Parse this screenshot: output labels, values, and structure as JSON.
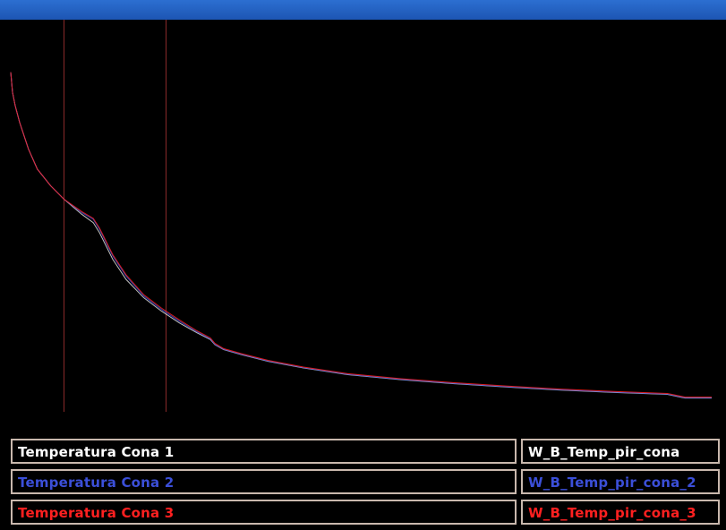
{
  "toolbar": {
    "labels": [
      "",
      "",
      "",
      "",
      "",
      "",
      "",
      "",
      "",
      "",
      ""
    ]
  },
  "legend": [
    {
      "name": "Temperatura Cona 1",
      "variable": "W_B_Temp_pir_cona",
      "color": "#ffffff"
    },
    {
      "name": "Temperatura Cona 2",
      "variable": "W_B_Temp_pir_cona_2",
      "color": "#3b4fd8"
    },
    {
      "name": "Temperatura Cona 3",
      "variable": "W_B_Temp_pir_cona_3",
      "color": "#ff2020"
    }
  ],
  "chart_data": {
    "type": "line",
    "x": [
      0,
      2,
      5,
      10,
      20,
      30,
      45,
      60,
      80,
      93,
      100,
      115,
      130,
      150,
      170,
      190,
      210,
      225,
      230,
      240,
      260,
      290,
      330,
      380,
      440,
      500,
      560,
      620,
      680,
      740,
      760,
      790
    ],
    "series": [
      {
        "color": "#ffffff",
        "values": [
          100,
          94,
          90,
          85,
          77,
          71,
          66,
          62,
          57.5,
          55,
          52,
          44,
          38,
          32.5,
          28.5,
          25,
          22,
          20,
          18.5,
          17,
          15.5,
          13.5,
          11.5,
          9.5,
          8,
          6.8,
          5.8,
          4.9,
          4.2,
          3.6,
          2.5,
          2.5
        ]
      },
      {
        "color": "#3b4fd8",
        "values": [
          100,
          94,
          90,
          85,
          77,
          71,
          66,
          62,
          58,
          56,
          53,
          45,
          39,
          33,
          29,
          25.5,
          22.3,
          20.2,
          18.6,
          17.1,
          15.6,
          13.6,
          11.6,
          9.6,
          8.1,
          6.9,
          5.9,
          5,
          4.3,
          3.7,
          2.6,
          2.6
        ]
      },
      {
        "color": "#ff2020",
        "values": [
          100,
          94,
          90,
          85,
          77,
          71,
          66,
          62,
          58.3,
          56.3,
          53.4,
          45.4,
          39.4,
          33.4,
          29.4,
          25.9,
          22.6,
          20.5,
          18.9,
          17.3,
          15.8,
          13.8,
          11.8,
          9.8,
          8.3,
          7.1,
          6.1,
          5.2,
          4.5,
          3.9,
          2.8,
          2.8
        ]
      }
    ],
    "markers_x": [
      60,
      175
    ],
    "marker_color": "#8a2a2a",
    "xlim": [
      0,
      795
    ],
    "ylim": [
      0,
      105
    ],
    "grid": false
  }
}
